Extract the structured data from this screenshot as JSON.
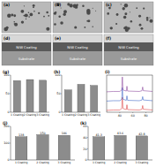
{
  "panels": {
    "images": [
      {
        "label": "(a)"
      },
      {
        "label": "(b)"
      },
      {
        "label": "(c)"
      }
    ],
    "sections": [
      {
        "label": "(d)",
        "coating": "NiW Coating",
        "substrate": "Substrate"
      },
      {
        "label": "(e)",
        "coating": "NiW Coating",
        "substrate": "Substrate"
      },
      {
        "label": "(f)",
        "coating": "NiW Coating",
        "substrate": "Substrate"
      }
    ]
  },
  "chart_data": [
    {
      "type": "bar",
      "title": "(g)",
      "categories": [
        "1 Coating",
        "2 Coating",
        "3 Coating"
      ],
      "values": [
        85,
        88,
        86
      ],
      "color": "#8c8c8c",
      "ylim": [
        0,
        100
      ],
      "yticks": [
        0,
        50,
        100
      ]
    },
    {
      "type": "bar",
      "title": "(h)",
      "categories": [
        "1 Coating",
        "2 Coating",
        "3 Coating"
      ],
      "values": [
        60,
        75,
        72
      ],
      "color": "#8c8c8c",
      "ylim": [
        0,
        100
      ],
      "yticks": [
        0,
        50,
        100
      ]
    },
    {
      "type": "line",
      "title": "(i)",
      "x": [
        20,
        30,
        40,
        43,
        44,
        45,
        50,
        51,
        52,
        70,
        74,
        75,
        76,
        90
      ],
      "series": [
        {
          "color": "#d62728",
          "values": [
            5,
            6,
            6,
            10,
            40,
            10,
            7,
            20,
            7,
            6,
            8,
            18,
            8,
            6
          ]
        },
        {
          "color": "#1f4fbf",
          "values": [
            30,
            31,
            31,
            35,
            66,
            35,
            32,
            44,
            32,
            31,
            33,
            42,
            33,
            31
          ]
        },
        {
          "color": "#7b2d8e",
          "values": [
            55,
            56,
            56,
            60,
            95,
            60,
            57,
            70,
            57,
            56,
            58,
            68,
            58,
            56
          ]
        }
      ],
      "xlim": [
        20,
        90
      ],
      "xticks": [
        40,
        60,
        80
      ],
      "ylim": [
        0,
        100
      ],
      "tick_labels": "x"
    },
    {
      "type": "bar",
      "title": "(j)",
      "categories": [
        "1 Coating",
        "2 Coating",
        "3 Coating"
      ],
      "values": [
        138,
        150,
        146
      ],
      "color": "#8c8c8c",
      "ylim": [
        0,
        200
      ],
      "yticks": [
        0,
        100,
        200
      ],
      "data_labels": true
    },
    {
      "type": "bar",
      "title": "(k)",
      "categories": [
        "1 Coating",
        "2 Coating",
        "3 Coating"
      ],
      "values": [
        41.3,
        43.6,
        42.8
      ],
      "color": "#8c8c8c",
      "ylim": [
        0,
        60
      ],
      "yticks": [
        0,
        20,
        40,
        60
      ],
      "data_labels": true
    }
  ]
}
